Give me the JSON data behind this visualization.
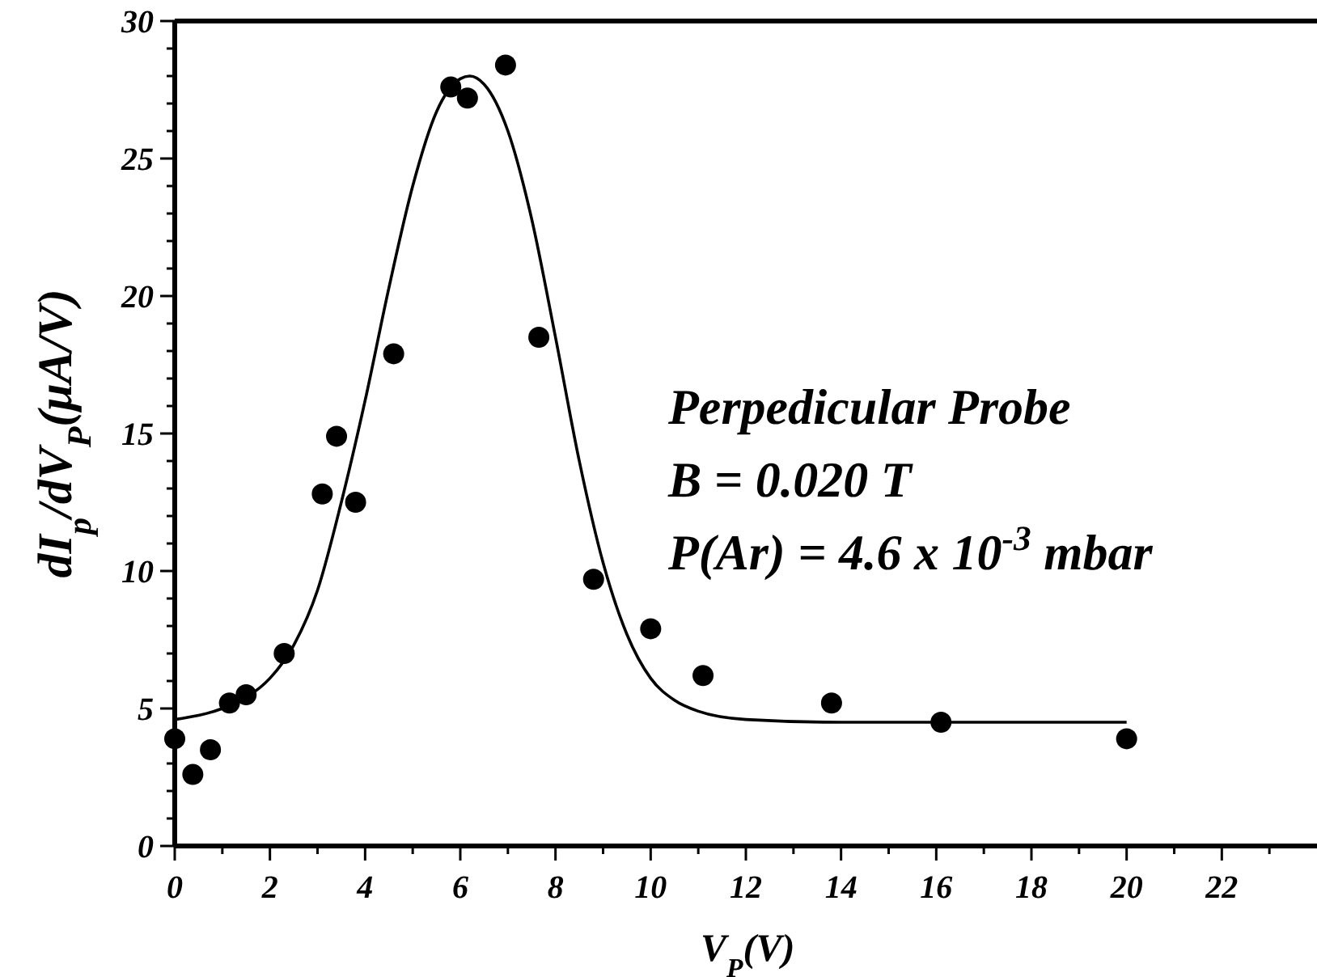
{
  "chart_data": {
    "type": "scatter",
    "xlabel": "V$_{P}$(V)",
    "ylabel": "dI$_{p}$/dV$_{P}$(μA/V)",
    "annotations": [
      "Perpedicular Probe",
      "B = 0.020 T",
      "P(Ar) = 4.6 x 10$^{-3}$ mbar"
    ],
    "xlim": [
      0,
      24
    ],
    "ylim": [
      0,
      30
    ],
    "xticks": [
      0,
      {
        "value": 1,
        "label": null
      },
      2,
      {
        "value": 3,
        "label": null
      },
      4,
      {
        "value": 5,
        "label": null
      },
      6,
      {
        "value": 7,
        "label": null
      },
      8,
      {
        "value": 9,
        "label": null
      },
      10,
      {
        "value": 11,
        "label": null
      },
      12,
      {
        "value": 13,
        "label": null
      },
      14,
      {
        "value": 15,
        "label": null
      },
      16,
      {
        "value": 17,
        "label": null
      },
      18,
      {
        "value": 19,
        "label": null
      },
      20,
      {
        "value": 21,
        "label": null
      },
      22,
      {
        "value": 23,
        "label": null
      }
    ],
    "yticks": [
      0,
      {
        "value": 1,
        "label": null
      },
      {
        "value": 2,
        "label": null
      },
      {
        "value": 3,
        "label": null
      },
      {
        "value": 4,
        "label": null
      },
      5,
      {
        "value": 6,
        "label": null
      },
      {
        "value": 7,
        "label": null
      },
      {
        "value": 8,
        "label": null
      },
      {
        "value": 9,
        "label": null
      },
      10,
      {
        "value": 11,
        "label": null
      },
      {
        "value": 12,
        "label": null
      },
      {
        "value": 13,
        "label": null
      },
      {
        "value": 14,
        "label": null
      },
      15,
      {
        "value": 16,
        "label": null
      },
      {
        "value": 17,
        "label": null
      },
      {
        "value": 18,
        "label": null
      },
      {
        "value": 19,
        "label": null
      },
      20,
      {
        "value": 21,
        "label": null
      },
      {
        "value": 22,
        "label": null
      },
      {
        "value": 23,
        "label": null
      },
      {
        "value": 24,
        "label": null
      },
      25,
      {
        "value": 26,
        "label": null
      },
      {
        "value": 27,
        "label": null
      },
      {
        "value": 28,
        "label": null
      },
      {
        "value": 29,
        "label": null
      },
      30
    ],
    "grid": false,
    "marker": "circle",
    "series": [
      {
        "color": "#000000",
        "x": [
          0,
          0.38,
          0.75,
          1.15,
          1.5,
          2.3,
          3.1,
          3.4,
          3.8,
          4.6,
          5.8,
          6.15,
          6.95,
          7.65,
          8.8,
          10.0,
          11.1,
          13.8,
          16.1,
          20.0
        ],
        "values": [
          3.9,
          2.6,
          3.5,
          5.2,
          5.5,
          7.0,
          12.8,
          14.9,
          12.5,
          17.9,
          27.6,
          27.2,
          28.4,
          18.5,
          9.7,
          7.9,
          6.2,
          5.2,
          4.5,
          3.9
        ]
      },
      {
        "type": "line",
        "color": "#000000",
        "marker": "none",
        "line_style": "solid",
        "x": [
          0,
          1,
          1.5,
          2,
          2.5,
          3,
          3.5,
          4,
          4.5,
          5,
          5.5,
          6,
          6.2,
          6.5,
          7,
          7.5,
          8,
          8.5,
          9,
          9.5,
          10,
          10.5,
          11,
          12,
          14,
          20
        ],
        "values": [
          4.6,
          5.0,
          5.4,
          6.1,
          7.3,
          9.3,
          12.5,
          16.2,
          20.3,
          24.0,
          26.7,
          27.9,
          28.0,
          27.7,
          26.0,
          22.8,
          18.5,
          14.0,
          10.3,
          7.7,
          6.1,
          5.3,
          4.9,
          4.6,
          4.5,
          4.5
        ]
      }
    ]
  }
}
